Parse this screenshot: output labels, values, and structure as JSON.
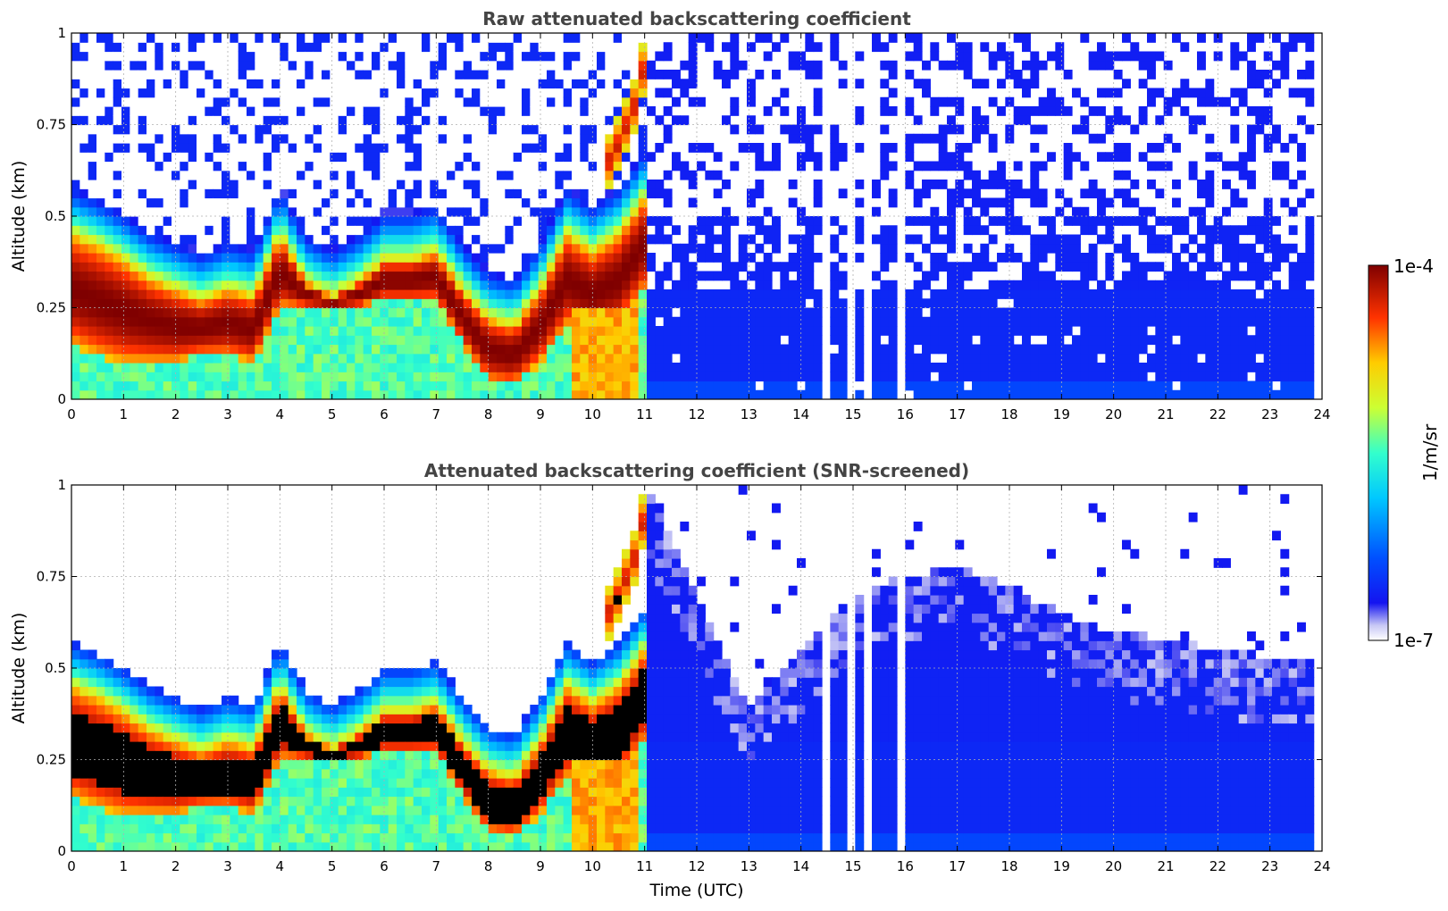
{
  "chart_data": [
    {
      "type": "heatmap",
      "title": "Raw attenuated backscattering coefficient",
      "xlabel": "",
      "ylabel": "Altitude (km)",
      "xlim": [
        0,
        24
      ],
      "ylim": [
        0,
        1
      ],
      "xticks": [
        "0",
        "1",
        "2",
        "3",
        "4",
        "5",
        "6",
        "7",
        "8",
        "9",
        "10",
        "11",
        "12",
        "13",
        "14",
        "15",
        "16",
        "17",
        "18",
        "19",
        "20",
        "21",
        "22",
        "23",
        "24"
      ],
      "yticks": [
        "0",
        "0.25",
        "0.5",
        "0.75",
        "1"
      ],
      "grid": true,
      "layers": [
        {
          "name": "main aerosol layer",
          "time_utc": [
            0,
            0.5,
            1,
            1.5,
            2,
            2.5,
            3,
            3.5,
            4,
            4.5,
            5,
            5.5,
            6,
            6.5,
            7,
            7.5,
            8,
            8.5,
            9,
            9.5,
            10,
            10.5,
            11
          ],
          "top_km": [
            0.45,
            0.42,
            0.38,
            0.33,
            0.3,
            0.27,
            0.3,
            0.28,
            0.45,
            0.32,
            0.28,
            0.32,
            0.38,
            0.38,
            0.4,
            0.3,
            0.22,
            0.2,
            0.3,
            0.45,
            0.4,
            0.45,
            0.55
          ],
          "base_km": [
            0.15,
            0.12,
            0.1,
            0.1,
            0.1,
            0.12,
            0.12,
            0.1,
            0.25,
            0.25,
            0.25,
            0.25,
            0.27,
            0.27,
            0.27,
            0.15,
            0.05,
            0.04,
            0.1,
            0.2,
            0.18,
            0.2,
            0.3
          ]
        },
        {
          "name": "rising elevated plume",
          "time_utc": [
            10.2,
            10.5,
            10.8,
            11.0,
            11.2
          ],
          "altitude_km": [
            0.62,
            0.7,
            0.8,
            0.92,
            1.0
          ]
        }
      ],
      "noise_region_utc": [
        11,
        23.8
      ],
      "missing_profiles_utc": [
        14.5,
        15.0,
        15.3,
        15.9
      ]
    },
    {
      "type": "heatmap",
      "title": "Attenuated backscattering coefficient (SNR-screened)",
      "xlabel": "Time (UTC)",
      "ylabel": "Altitude (km)",
      "xlim": [
        0,
        24
      ],
      "ylim": [
        0,
        1
      ],
      "xticks": [
        "0",
        "1",
        "2",
        "3",
        "4",
        "5",
        "6",
        "7",
        "8",
        "9",
        "10",
        "11",
        "12",
        "13",
        "14",
        "15",
        "16",
        "17",
        "18",
        "19",
        "20",
        "21",
        "22",
        "23",
        "24"
      ],
      "yticks": [
        "0",
        "0.25",
        "0.5",
        "0.75",
        "1"
      ],
      "grid": true,
      "screened_top_km": {
        "time_utc": [
          11,
          13,
          14,
          15,
          16,
          17,
          18,
          19,
          20,
          21,
          22,
          23.8
        ],
        "top_km": [
          1.0,
          0.4,
          0.55,
          0.7,
          0.75,
          0.78,
          0.72,
          0.65,
          0.6,
          0.58,
          0.55,
          0.52
        ]
      }
    }
  ],
  "colorbar": {
    "label": "1/m/sr",
    "max_label": "1e-4",
    "min_label": "1e-7",
    "scale": "log",
    "colormap": "jet (white at minimum)",
    "range": [
      1e-07,
      0.0001
    ]
  }
}
